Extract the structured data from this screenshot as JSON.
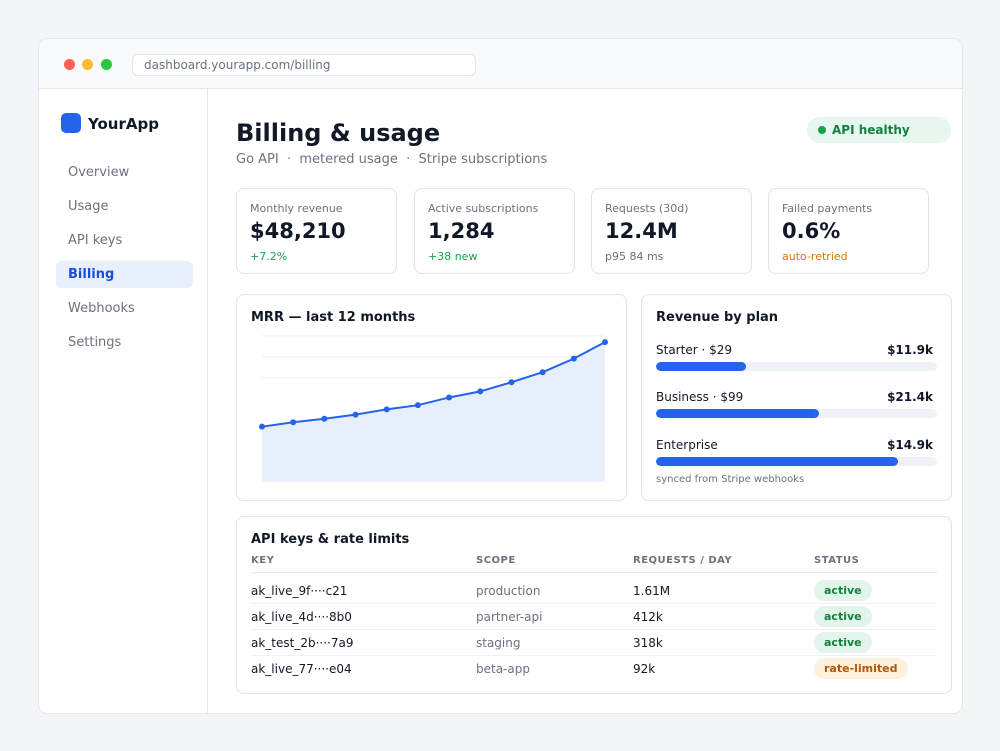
{
  "browser": {
    "url": "dashboard.yourapp.com/billing"
  },
  "sidebar": {
    "brand": "YourApp",
    "items": [
      {
        "label": "Overview",
        "active": false
      },
      {
        "label": "Usage",
        "active": false
      },
      {
        "label": "API keys",
        "active": false
      },
      {
        "label": "Billing",
        "active": true
      },
      {
        "label": "Webhooks",
        "active": false
      },
      {
        "label": "Settings",
        "active": false
      }
    ]
  },
  "header": {
    "title": "Billing & usage",
    "subtitle": "Go API  ·  metered usage  ·  Stripe subscriptions",
    "status": "API healthy"
  },
  "kpis": [
    {
      "label": "Monthly revenue",
      "value": "$48,210",
      "sub": "+7.2%"
    },
    {
      "label": "Active subscriptions",
      "value": "1,284",
      "sub": "+38 new"
    },
    {
      "label": "Requests (30d)",
      "value": "12.4M",
      "sub": "p95 84 ms"
    },
    {
      "label": "Failed payments",
      "value": "0.6%",
      "sub": "auto-retried"
    }
  ],
  "mrr_card": {
    "title": "MRR — last 12 months"
  },
  "chart_data": {
    "type": "area",
    "title": "MRR — last 12 months",
    "x": [
      1,
      2,
      3,
      4,
      5,
      6,
      7,
      8,
      9,
      10,
      11,
      12
    ],
    "values": [
      26.5,
      28.6,
      30.3,
      32.3,
      34.8,
      36.8,
      40.5,
      43.4,
      47.8,
      52.6,
      59.1,
      67.0
    ],
    "ylim": [
      0,
      80
    ],
    "grid": true,
    "color": "#2563eb",
    "fill": "#e8effc"
  },
  "plans": {
    "title": "Revenue by plan",
    "items": [
      {
        "name": "Starter · $29",
        "value": "$11.9k",
        "share": 0.32
      },
      {
        "name": "Business · $99",
        "value": "$21.4k",
        "share": 0.58
      },
      {
        "name": "Enterprise",
        "value": "$14.9k",
        "share": 0.86
      }
    ],
    "footnote": "synced from Stripe webhooks"
  },
  "keys_table": {
    "title": "API keys & rate limits",
    "columns": [
      "KEY",
      "SCOPE",
      "REQUESTS / DAY",
      "STATUS"
    ],
    "rows": [
      {
        "key": "ak_live_9f····c21",
        "scope": "production",
        "requests": "1.61M",
        "status": "active"
      },
      {
        "key": "ak_live_4d····8b0",
        "scope": "partner-api",
        "requests": "412k",
        "status": "active"
      },
      {
        "key": "ak_test_2b····7a9",
        "scope": "staging",
        "requests": "318k",
        "status": "active"
      },
      {
        "key": "ak_live_77····e04",
        "scope": "beta-app",
        "requests": "92k",
        "status": "rate-limited"
      }
    ]
  }
}
